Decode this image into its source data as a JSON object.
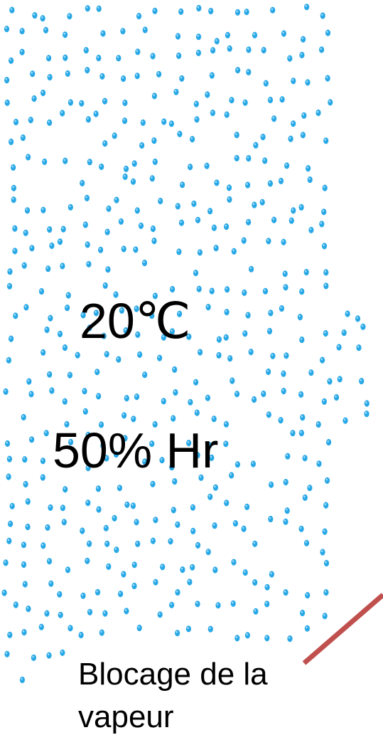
{
  "labels": {
    "temperature": "20℃",
    "humidity": "50% Hr",
    "caption": "Blocage de la vapeur"
  },
  "colors": {
    "dot": "#29a8e6",
    "dot_highlight": "#9fdcfb",
    "pointer_line": "#c0504d",
    "text": "#000000"
  }
}
